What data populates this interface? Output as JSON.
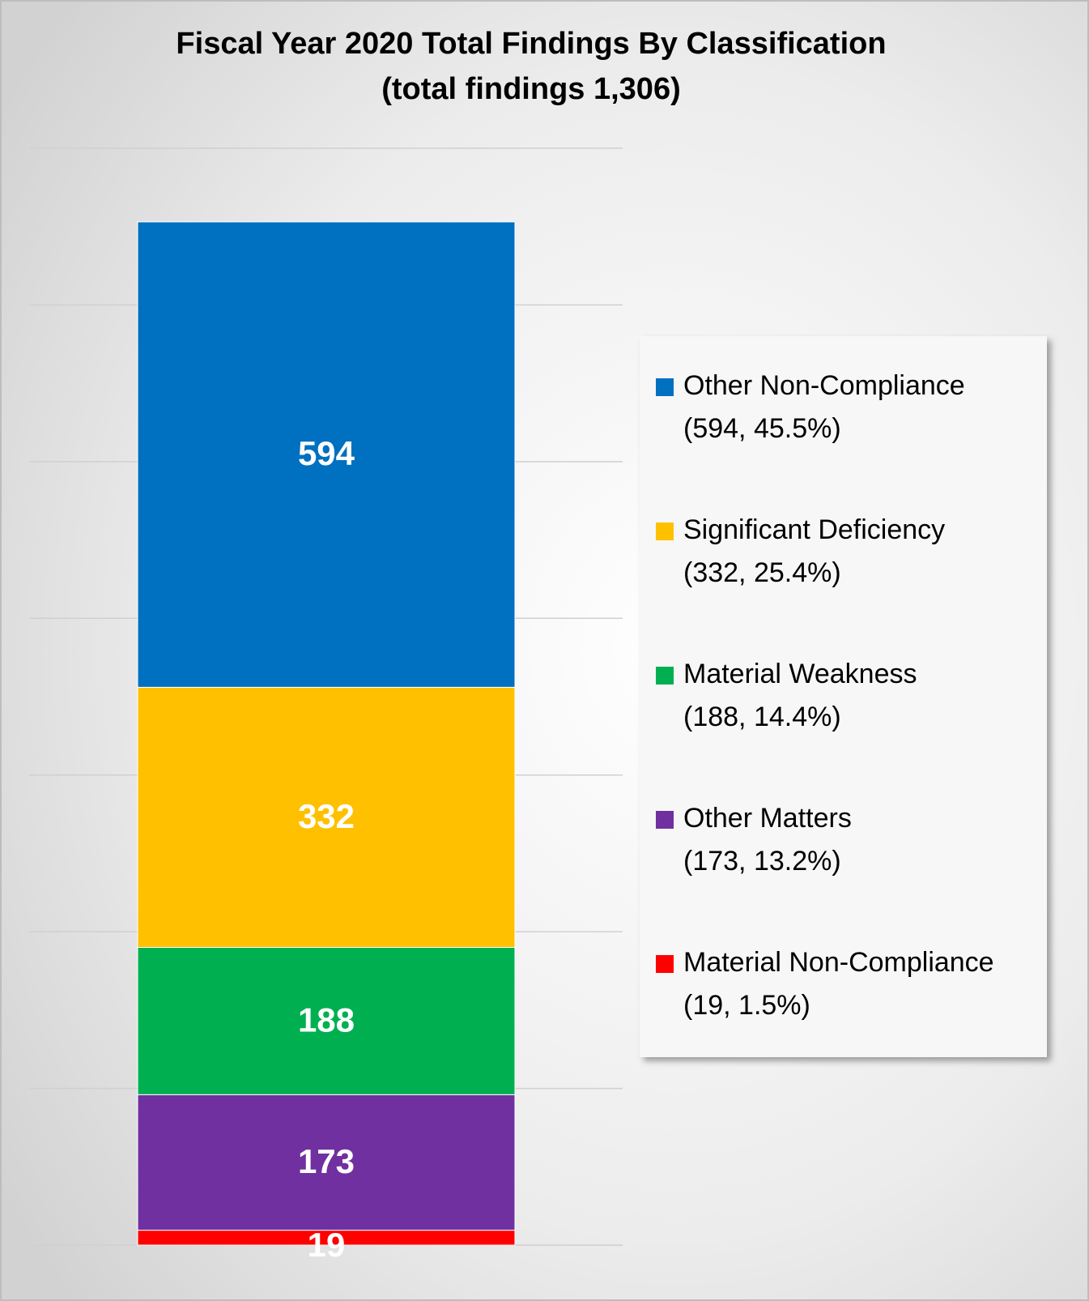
{
  "chart_data": {
    "type": "stacked_bar",
    "title": "Fiscal Year 2020 Total Findings By Classification",
    "subtitle": "(total findings 1,306)",
    "categories": [
      null
    ],
    "series": [
      {
        "name": "Other Non-Compliance",
        "legend_note": "(594, 45.5%)",
        "color": "#0070c0",
        "values": [
          594
        ]
      },
      {
        "name": "Significant Deficiency",
        "legend_note": "(332, 25.4%)",
        "color": "#ffc000",
        "values": [
          332
        ]
      },
      {
        "name": "Material Weakness",
        "legend_note": "(188, 14.4%)",
        "color": "#00b050",
        "values": [
          188
        ]
      },
      {
        "name": "Other Matters",
        "legend_note": "(173, 13.2%)",
        "color": "#7030a0",
        "values": [
          173
        ]
      },
      {
        "name": "Material Non-Compliance",
        "legend_note": "(19, 1.5%)",
        "color": "#ff0000",
        "values": [
          19
        ]
      }
    ],
    "ylim": [
      0,
      1400
    ],
    "yticks": [
      0,
      200,
      400,
      600,
      800,
      1000,
      1200,
      1400
    ],
    "grid": true,
    "legend": "right"
  }
}
